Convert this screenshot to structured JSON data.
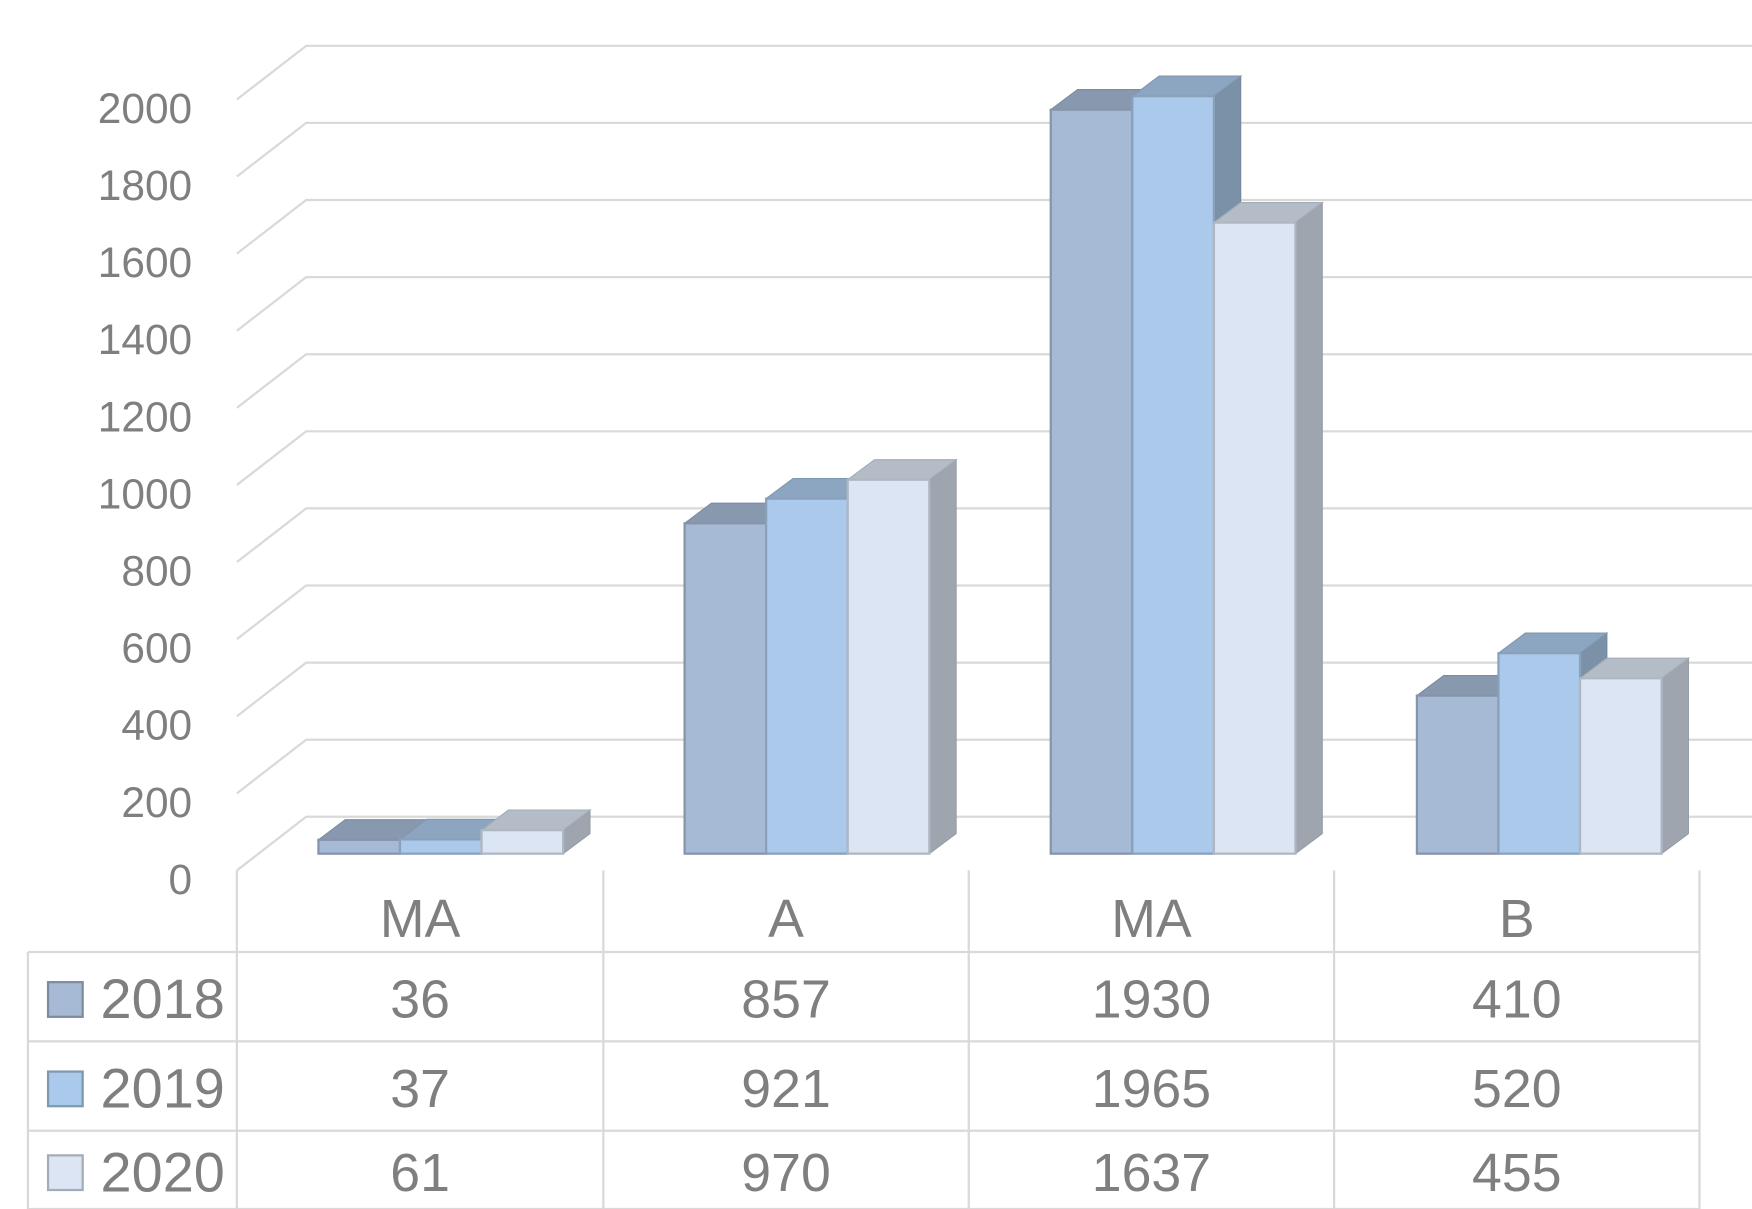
{
  "chart_data": {
    "type": "bar3d",
    "categories": [
      "MA",
      "A",
      "MA",
      "B"
    ],
    "series": [
      {
        "name": "2018",
        "color": "#a6b9d5",
        "values": [
          36,
          857,
          1930,
          410
        ]
      },
      {
        "name": "2019",
        "color": "#abc9ea",
        "values": [
          37,
          921,
          1965,
          520
        ]
      },
      {
        "name": "2020",
        "color": "#dbe5f3",
        "values": [
          61,
          970,
          1637,
          455
        ]
      }
    ],
    "ylim": [
      0,
      2000
    ],
    "yticks": [
      0,
      200,
      400,
      600,
      800,
      1000,
      1200,
      1400,
      1600,
      1800,
      2000
    ],
    "grid": true
  }
}
